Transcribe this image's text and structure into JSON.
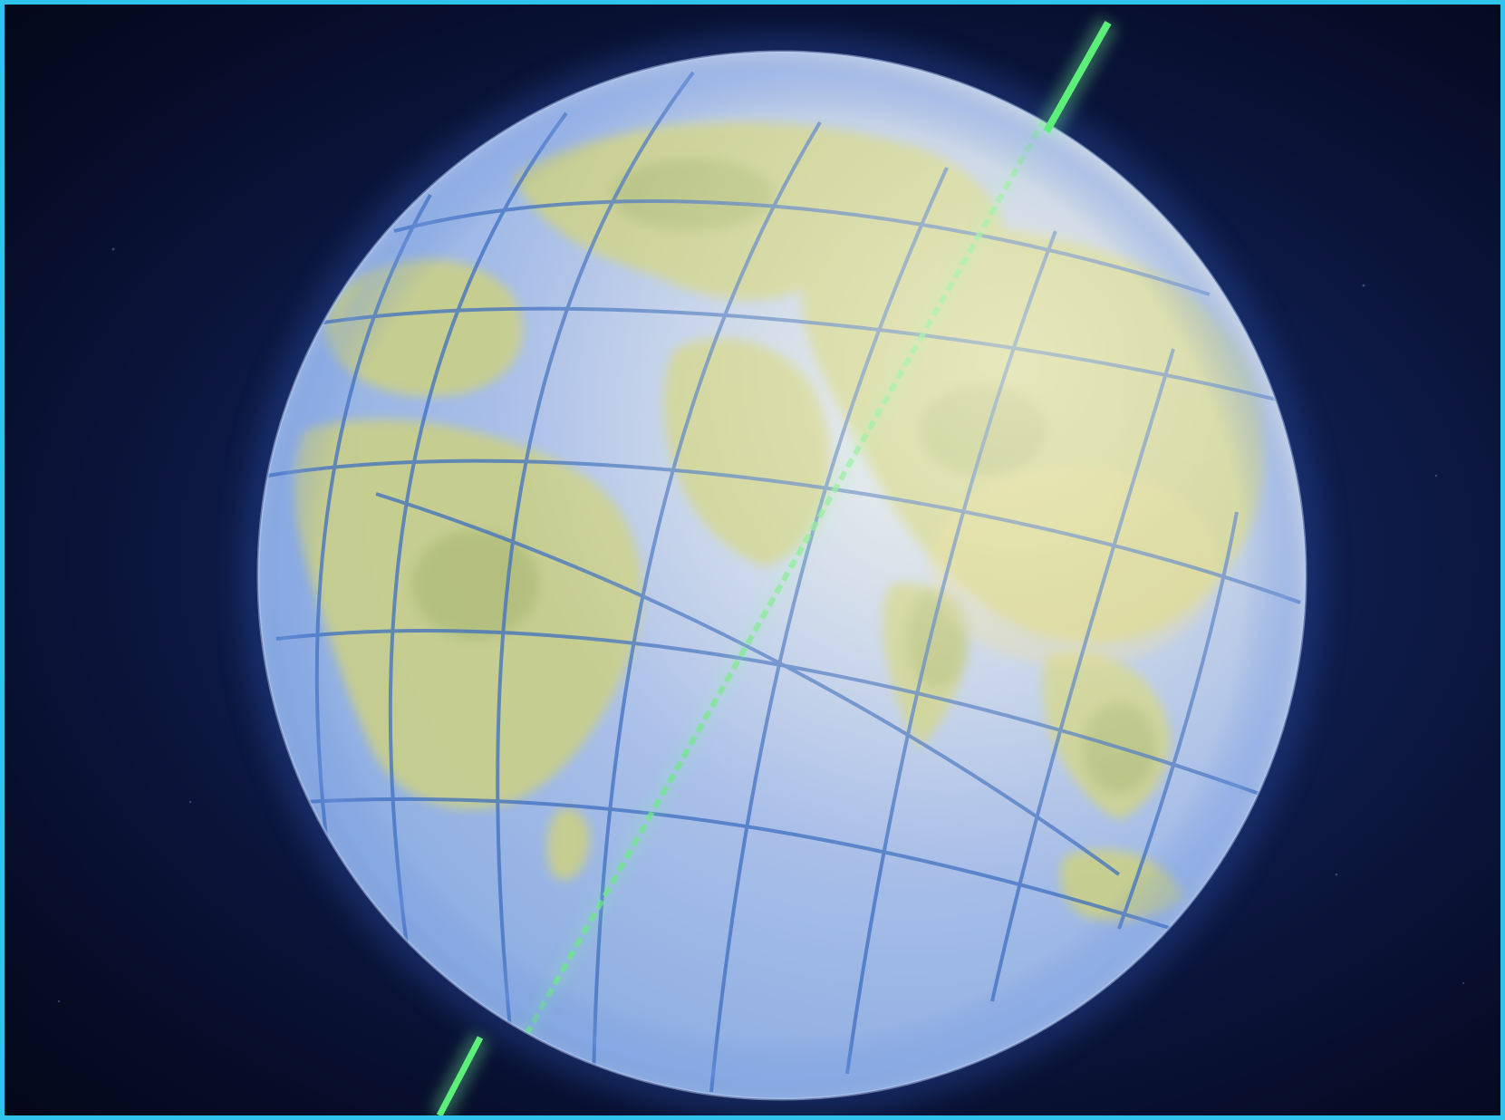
{
  "scene": {
    "subject": "earth-globe-with-rotation-axis",
    "colors": {
      "frame_border": "#2fc4ec",
      "space": "#0b1230",
      "ocean": "#9fb8e6",
      "land": "#c9cf8a",
      "grid": "#3f6fc0",
      "axis": "#5cf07a"
    }
  }
}
